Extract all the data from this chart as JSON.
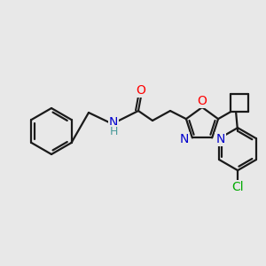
{
  "background_color": "#e8e8e8",
  "bond_color": "#1a1a1a",
  "atom_colors": {
    "O": "#ff0000",
    "N": "#0000cd",
    "Cl": "#00aa00",
    "C": "#1a1a1a",
    "H": "#4a9a9a"
  },
  "figsize": [
    3.0,
    3.0
  ],
  "dpi": 100
}
